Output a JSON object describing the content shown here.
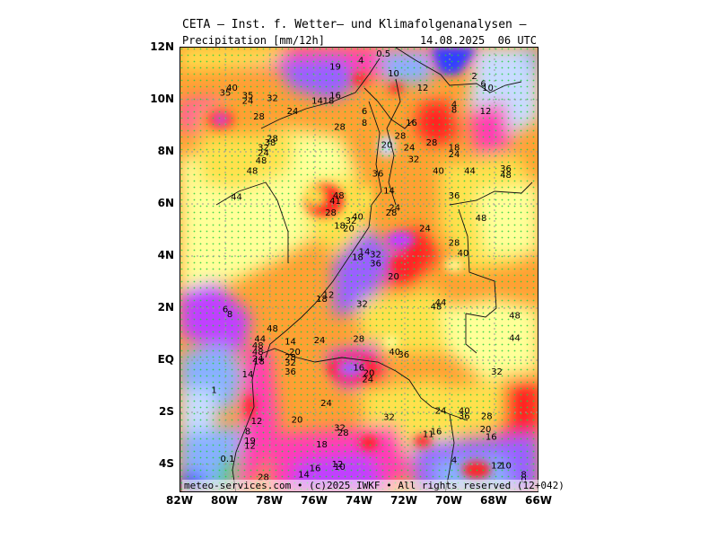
{
  "header": {
    "title": "CETA — Inst. f. Wetter— und Klimafolgenanalysen —",
    "subtitle": "Precipitation [mm/12h]",
    "datetime": "14.08.2025  06 UTC"
  },
  "footer": "meteo-services.com • (c)2025 IWKF • All rights reserved (12+042)",
  "axes": {
    "lat_labels": [
      "12N",
      "10N",
      "8N",
      "6N",
      "4N",
      "2N",
      "EQ",
      "2S",
      "4S"
    ],
    "lon_labels": [
      "82W",
      "80W",
      "78W",
      "76W",
      "74W",
      "72W",
      "70W",
      "68W",
      "66W"
    ]
  },
  "colors": {
    "light_yellow": "#ffff99",
    "yellow": "#ffe14d",
    "orange": "#ffa033",
    "red": "#ff2020",
    "magenta": "#ff3cb4",
    "purple": "#c040ff",
    "violet": "#9a60ff",
    "blue": "#3040ff",
    "light_blue": "#88b0ff",
    "pale_blue": "#c8dcff",
    "green": "#20d040"
  },
  "values": [
    {
      "t": "0.5",
      "lon": -72.95,
      "lat": 11.65
    },
    {
      "t": "19",
      "lon": -75.1,
      "lat": 11.15
    },
    {
      "t": "4",
      "lon": -73.95,
      "lat": 11.4
    },
    {
      "t": "10",
      "lon": -72.5,
      "lat": 10.9
    },
    {
      "t": "12",
      "lon": -71.2,
      "lat": 10.35
    },
    {
      "t": "2",
      "lon": -68.9,
      "lat": 10.8
    },
    {
      "t": "6",
      "lon": -68.5,
      "lat": 10.5
    },
    {
      "t": "10",
      "lon": -68.3,
      "lat": 10.35
    },
    {
      "t": "40",
      "lon": -79.7,
      "lat": 10.35
    },
    {
      "t": "35",
      "lon": -80.0,
      "lat": 10.15
    },
    {
      "t": "35",
      "lon": -79.0,
      "lat": 10.05
    },
    {
      "t": "24",
      "lon": -79.0,
      "lat": 9.85
    },
    {
      "t": "32",
      "lon": -77.9,
      "lat": 9.95
    },
    {
      "t": "16",
      "lon": -75.1,
      "lat": 10.05
    },
    {
      "t": "14",
      "lon": -75.9,
      "lat": 9.85
    },
    {
      "t": "18",
      "lon": -75.4,
      "lat": 9.85
    },
    {
      "t": "24",
      "lon": -77.0,
      "lat": 9.45
    },
    {
      "t": "28",
      "lon": -78.5,
      "lat": 9.25
    },
    {
      "t": "6",
      "lon": -73.8,
      "lat": 9.45
    },
    {
      "t": "8",
      "lon": -73.8,
      "lat": 9.0
    },
    {
      "t": "16",
      "lon": -71.7,
      "lat": 9.0
    },
    {
      "t": "4",
      "lon": -69.8,
      "lat": 9.7
    },
    {
      "t": "8",
      "lon": -69.8,
      "lat": 9.5
    },
    {
      "t": "12",
      "lon": -68.4,
      "lat": 9.45
    },
    {
      "t": "28",
      "lon": -74.9,
      "lat": 8.85
    },
    {
      "t": "28",
      "lon": -72.2,
      "lat": 8.5
    },
    {
      "t": "28",
      "lon": -70.8,
      "lat": 8.25
    },
    {
      "t": "20",
      "lon": -72.8,
      "lat": 8.15
    },
    {
      "t": "24",
      "lon": -71.8,
      "lat": 8.05
    },
    {
      "t": "28",
      "lon": -77.9,
      "lat": 8.4
    },
    {
      "t": "38",
      "lon": -78.0,
      "lat": 8.25
    },
    {
      "t": "32",
      "lon": -78.3,
      "lat": 8.05
    },
    {
      "t": "24",
      "lon": -78.3,
      "lat": 7.85
    },
    {
      "t": "48",
      "lon": -78.4,
      "lat": 7.55
    },
    {
      "t": "48",
      "lon": -78.8,
      "lat": 7.15
    },
    {
      "t": "18",
      "lon": -69.8,
      "lat": 8.05
    },
    {
      "t": "24",
      "lon": -69.8,
      "lat": 7.8
    },
    {
      "t": "32",
      "lon": -71.6,
      "lat": 7.6
    },
    {
      "t": "40",
      "lon": -70.5,
      "lat": 7.15
    },
    {
      "t": "44",
      "lon": -69.1,
      "lat": 7.15
    },
    {
      "t": "36",
      "lon": -67.5,
      "lat": 7.25
    },
    {
      "t": "48",
      "lon": -67.5,
      "lat": 7.0
    },
    {
      "t": "36",
      "lon": -73.2,
      "lat": 7.05
    },
    {
      "t": "14",
      "lon": -72.7,
      "lat": 6.4
    },
    {
      "t": "36",
      "lon": -69.8,
      "lat": 6.2
    },
    {
      "t": "44",
      "lon": -79.5,
      "lat": 6.15
    },
    {
      "t": "48",
      "lon": -74.95,
      "lat": 6.2
    },
    {
      "t": "41",
      "lon": -75.1,
      "lat": 6.0
    },
    {
      "t": "24",
      "lon": -72.45,
      "lat": 5.75
    },
    {
      "t": "28",
      "lon": -72.6,
      "lat": 5.55
    },
    {
      "t": "48",
      "lon": -68.6,
      "lat": 5.35
    },
    {
      "t": "28",
      "lon": -75.3,
      "lat": 5.55
    },
    {
      "t": "40",
      "lon": -74.1,
      "lat": 5.4
    },
    {
      "t": "32",
      "lon": -74.4,
      "lat": 5.25
    },
    {
      "t": "18",
      "lon": -74.9,
      "lat": 5.05
    },
    {
      "t": "20",
      "lon": -74.5,
      "lat": 4.95
    },
    {
      "t": "24",
      "lon": -71.1,
      "lat": 4.95
    },
    {
      "t": "28",
      "lon": -69.8,
      "lat": 4.4
    },
    {
      "t": "40",
      "lon": -69.4,
      "lat": 4.0
    },
    {
      "t": "14",
      "lon": -73.8,
      "lat": 4.05
    },
    {
      "t": "18",
      "lon": -74.1,
      "lat": 3.85
    },
    {
      "t": "32",
      "lon": -73.3,
      "lat": 3.95
    },
    {
      "t": "36",
      "lon": -73.3,
      "lat": 3.6
    },
    {
      "t": "20",
      "lon": -72.5,
      "lat": 3.1
    },
    {
      "t": "12",
      "lon": -75.4,
      "lat": 2.4
    },
    {
      "t": "18",
      "lon": -75.7,
      "lat": 2.25
    },
    {
      "t": "32",
      "lon": -73.9,
      "lat": 2.05
    },
    {
      "t": "44",
      "lon": -70.4,
      "lat": 2.1
    },
    {
      "t": "48",
      "lon": -70.6,
      "lat": 1.95
    },
    {
      "t": "6",
      "lon": -80.0,
      "lat": 1.85
    },
    {
      "t": "8",
      "lon": -79.8,
      "lat": 1.65
    },
    {
      "t": "48",
      "lon": -77.9,
      "lat": 1.1
    },
    {
      "t": "48",
      "lon": -67.1,
      "lat": 1.6
    },
    {
      "t": "44",
      "lon": -67.1,
      "lat": 0.75
    },
    {
      "t": "44",
      "lon": -78.45,
      "lat": 0.7
    },
    {
      "t": "14",
      "lon": -77.1,
      "lat": 0.6
    },
    {
      "t": "24",
      "lon": -75.8,
      "lat": 0.65
    },
    {
      "t": "28",
      "lon": -74.05,
      "lat": 0.7
    },
    {
      "t": "48",
      "lon": -78.55,
      "lat": 0.45
    },
    {
      "t": "48",
      "lon": -78.55,
      "lat": 0.2
    },
    {
      "t": "20",
      "lon": -76.9,
      "lat": 0.2
    },
    {
      "t": "40",
      "lon": -72.45,
      "lat": 0.2
    },
    {
      "t": "36",
      "lon": -72.05,
      "lat": 0.1
    },
    {
      "t": "24",
      "lon": -78.55,
      "lat": -0.05
    },
    {
      "t": "28",
      "lon": -77.1,
      "lat": -0.0
    },
    {
      "t": "32",
      "lon": -77.1,
      "lat": -0.2
    },
    {
      "t": "18",
      "lon": -78.5,
      "lat": -0.15
    },
    {
      "t": "36",
      "lon": -77.1,
      "lat": -0.55
    },
    {
      "t": "16",
      "lon": -74.05,
      "lat": -0.4
    },
    {
      "t": "20",
      "lon": -73.6,
      "lat": -0.6
    },
    {
      "t": "24",
      "lon": -73.65,
      "lat": -0.85
    },
    {
      "t": "14",
      "lon": -79.0,
      "lat": -0.65
    },
    {
      "t": "32",
      "lon": -67.9,
      "lat": -0.55
    },
    {
      "t": "1",
      "lon": -80.5,
      "lat": -1.25
    },
    {
      "t": "24",
      "lon": -75.5,
      "lat": -1.75
    },
    {
      "t": "24",
      "lon": -70.4,
      "lat": -2.05
    },
    {
      "t": "40",
      "lon": -69.35,
      "lat": -2.05
    },
    {
      "t": "36",
      "lon": -69.35,
      "lat": -2.25
    },
    {
      "t": "28",
      "lon": -68.35,
      "lat": -2.25
    },
    {
      "t": "32",
      "lon": -72.7,
      "lat": -2.3
    },
    {
      "t": "12",
      "lon": -78.6,
      "lat": -2.45
    },
    {
      "t": "20",
      "lon": -76.8,
      "lat": -2.4
    },
    {
      "t": "20",
      "lon": -68.4,
      "lat": -2.75
    },
    {
      "t": "16",
      "lon": -68.15,
      "lat": -3.05
    },
    {
      "t": "32",
      "lon": -74.9,
      "lat": -2.7
    },
    {
      "t": "28",
      "lon": -74.75,
      "lat": -2.9
    },
    {
      "t": "8",
      "lon": -79.0,
      "lat": -2.85
    },
    {
      "t": "11",
      "lon": -70.95,
      "lat": -2.95
    },
    {
      "t": "16",
      "lon": -70.6,
      "lat": -2.85
    },
    {
      "t": "19",
      "lon": -78.9,
      "lat": -3.2
    },
    {
      "t": "12",
      "lon": -78.9,
      "lat": -3.4
    },
    {
      "t": "18",
      "lon": -75.7,
      "lat": -3.35
    },
    {
      "t": "0.1",
      "lon": -79.9,
      "lat": -3.9
    },
    {
      "t": "12",
      "lon": -75.0,
      "lat": -4.1
    },
    {
      "t": "10",
      "lon": -74.9,
      "lat": -4.2
    },
    {
      "t": "16",
      "lon": -76.0,
      "lat": -4.25
    },
    {
      "t": "4",
      "lon": -69.8,
      "lat": -3.95
    },
    {
      "t": "12",
      "lon": -67.9,
      "lat": -4.15
    },
    {
      "t": "10",
      "lon": -67.5,
      "lat": -4.15
    },
    {
      "t": "28",
      "lon": -78.3,
      "lat": -4.6
    },
    {
      "t": "14",
      "lon": -76.5,
      "lat": -4.5
    },
    {
      "t": "8",
      "lon": -66.7,
      "lat": -4.5
    },
    {
      "t": "0",
      "lon": -66.7,
      "lat": -4.7
    }
  ]
}
